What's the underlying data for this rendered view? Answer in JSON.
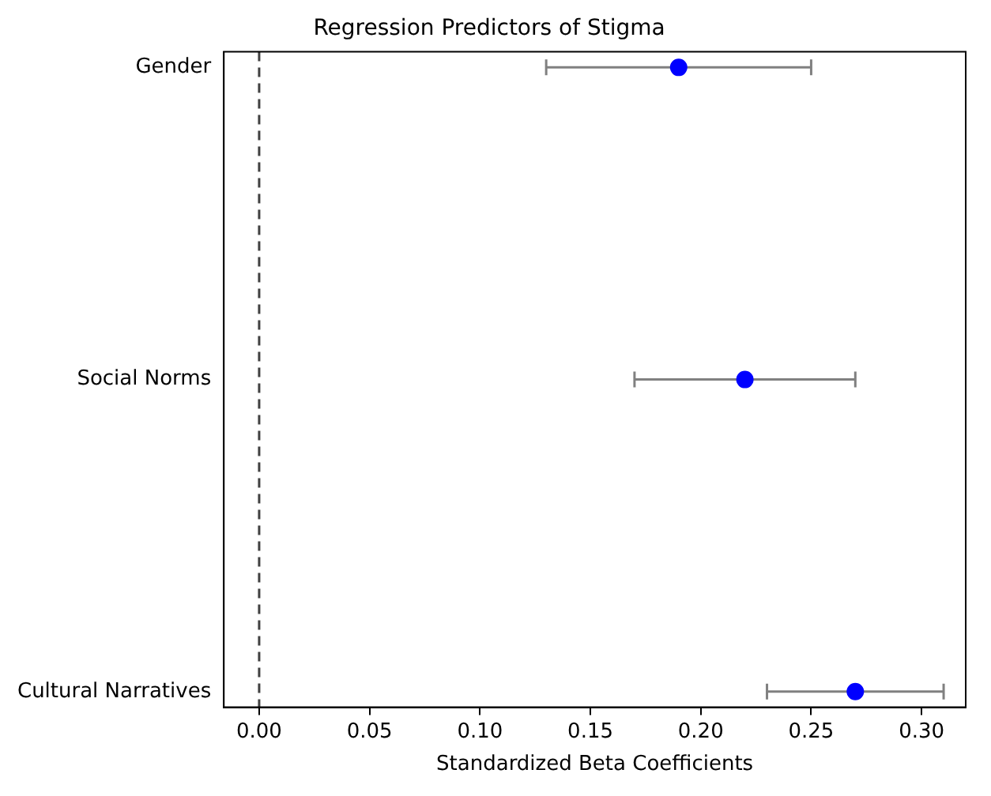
{
  "chart_data": {
    "type": "scatter",
    "title": "Regression Predictors of Stigma",
    "xlabel": "Standardized Beta Coefficients",
    "orientation": "horizontal",
    "categories": [
      "Gender",
      "Social Norms",
      "Cultural Narratives"
    ],
    "series": [
      {
        "color": "#0000ff",
        "values": [
          0.19,
          0.22,
          0.27
        ],
        "errors": [
          [
            0.13,
            0.25
          ],
          [
            0.17,
            0.27
          ],
          [
            0.23,
            0.31
          ]
        ]
      }
    ],
    "xlim": [
      -0.016,
      0.32
    ],
    "xticks": [
      {
        "value": 0,
        "label": "0.00"
      },
      {
        "value": 0.05,
        "label": "0.05"
      },
      {
        "value": 0.1,
        "label": "0.10"
      },
      {
        "value": 0.15,
        "label": "0.15"
      },
      {
        "value": 0.2,
        "label": "0.20"
      },
      {
        "value": 0.25,
        "label": "0.25"
      },
      {
        "value": 0.3,
        "label": "0.30"
      }
    ],
    "ref_lines": [
      {
        "axis": "x",
        "value": 0,
        "color": "#404040",
        "line_style": "dashed"
      }
    ],
    "grid": false,
    "legend": false,
    "marker": "circle"
  }
}
